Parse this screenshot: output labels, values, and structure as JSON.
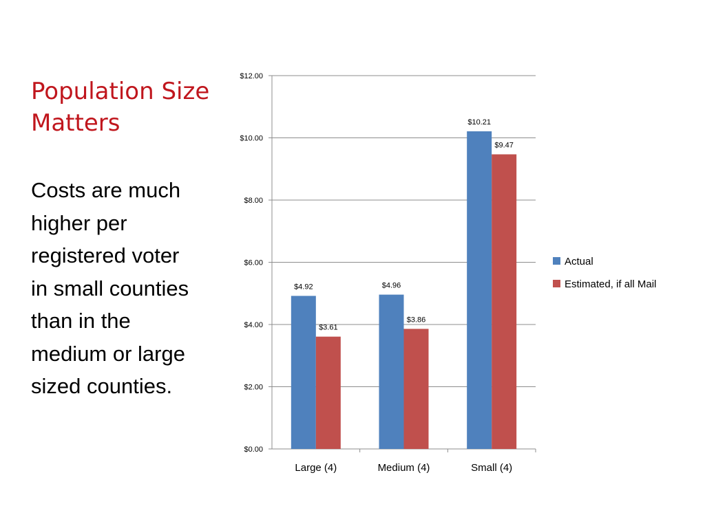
{
  "slide": {
    "title_lines": [
      "Population Size",
      "Matters"
    ],
    "body_lines": [
      "Costs are much",
      "higher per",
      "registered voter",
      "in small counties",
      "than in the",
      "medium or large",
      "sized counties."
    ]
  },
  "colors": {
    "title": "#c0161d",
    "actual": "#4f81bd",
    "estimated": "#c0504d"
  },
  "chart_data": {
    "type": "bar",
    "categories": [
      "Large (4)",
      "Medium (4)",
      "Small (4)"
    ],
    "series": [
      {
        "name": "Actual",
        "values": [
          4.92,
          4.96,
          10.21
        ],
        "labels": [
          "$4.92",
          "$4.96",
          "$10.21"
        ],
        "color": "#4f81bd"
      },
      {
        "name": "Estimated, if all Mail",
        "values": [
          3.61,
          3.86,
          9.47
        ],
        "labels": [
          "$3.61",
          "$3.86",
          "$9.47"
        ],
        "color": "#c0504d"
      }
    ],
    "ylim": [
      0,
      12
    ],
    "yticks": [
      0,
      2,
      4,
      6,
      8,
      10,
      12
    ],
    "ytick_labels": [
      "$0.00",
      "$2.00",
      "$4.00",
      "$6.00",
      "$8.00",
      "$10.00",
      "$12.00"
    ],
    "title": "",
    "xlabel": "",
    "ylabel": "",
    "grid": true,
    "legend_position": "right"
  }
}
